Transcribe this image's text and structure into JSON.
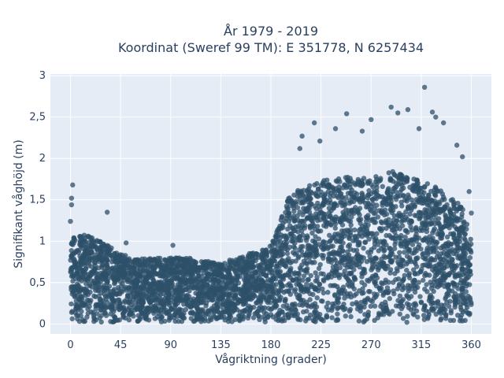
{
  "chart_data": {
    "type": "scatter",
    "title_line1": "År 1979 - 2019",
    "title_line2": "Koordinat (Sweref 99 TM): E 351778, N 6257434",
    "xlabel": "Vågriktning (grader)",
    "ylabel": "Signifikant våghöjd (m)",
    "xlim": [
      -18,
      378
    ],
    "ylim": [
      -0.12,
      3.02
    ],
    "xticks": [
      0,
      45,
      90,
      135,
      180,
      225,
      270,
      315,
      360
    ],
    "xtick_labels": [
      "0",
      "45",
      "90",
      "135",
      "180",
      "225",
      "270",
      "315",
      "360"
    ],
    "yticks": [
      0,
      0.5,
      1,
      1.5,
      2,
      2.5,
      3
    ],
    "ytick_labels": [
      "0",
      "0,5",
      "1",
      "1,5",
      "2",
      "2,5",
      "3"
    ],
    "grid": true,
    "legend": "none",
    "marker_color": "#2e5069",
    "marker_opacity": 0.75,
    "envelope": {
      "x": [
        0,
        5,
        10,
        20,
        30,
        45,
        60,
        75,
        90,
        105,
        120,
        135,
        150,
        160,
        170,
        180,
        185,
        190,
        195,
        200,
        210,
        220,
        230,
        240,
        250,
        260,
        270,
        280,
        290,
        300,
        310,
        320,
        330,
        340,
        350,
        355,
        360
      ],
      "y_max": [
        1.15,
        1.05,
        1.08,
        1.05,
        1.0,
        0.85,
        0.78,
        0.8,
        0.8,
        0.8,
        0.76,
        0.74,
        0.8,
        0.85,
        0.9,
        0.95,
        1.1,
        1.3,
        1.5,
        1.6,
        1.65,
        1.7,
        1.75,
        1.75,
        1.8,
        1.75,
        1.78,
        1.8,
        1.85,
        1.8,
        1.75,
        1.7,
        1.65,
        1.55,
        1.45,
        1.3,
        1.0
      ],
      "y_min": 0.02
    },
    "outliers": [
      {
        "x": 2,
        "y": 1.68
      },
      {
        "x": 1,
        "y": 1.52
      },
      {
        "x": 1,
        "y": 1.44
      },
      {
        "x": 0,
        "y": 1.24
      },
      {
        "x": 33,
        "y": 1.35
      },
      {
        "x": 50,
        "y": 0.98
      },
      {
        "x": 92,
        "y": 0.95
      },
      {
        "x": 206,
        "y": 2.12
      },
      {
        "x": 208,
        "y": 2.27
      },
      {
        "x": 219,
        "y": 2.43
      },
      {
        "x": 224,
        "y": 2.21
      },
      {
        "x": 238,
        "y": 2.36
      },
      {
        "x": 248,
        "y": 2.54
      },
      {
        "x": 262,
        "y": 2.33
      },
      {
        "x": 270,
        "y": 2.47
      },
      {
        "x": 288,
        "y": 2.62
      },
      {
        "x": 294,
        "y": 2.55
      },
      {
        "x": 303,
        "y": 2.59
      },
      {
        "x": 318,
        "y": 2.86
      },
      {
        "x": 325,
        "y": 2.56
      },
      {
        "x": 328,
        "y": 2.5
      },
      {
        "x": 335,
        "y": 2.43
      },
      {
        "x": 313,
        "y": 2.36
      },
      {
        "x": 347,
        "y": 2.16
      },
      {
        "x": 352,
        "y": 2.02
      },
      {
        "x": 358,
        "y": 1.6
      },
      {
        "x": 360,
        "y": 1.34
      }
    ]
  }
}
